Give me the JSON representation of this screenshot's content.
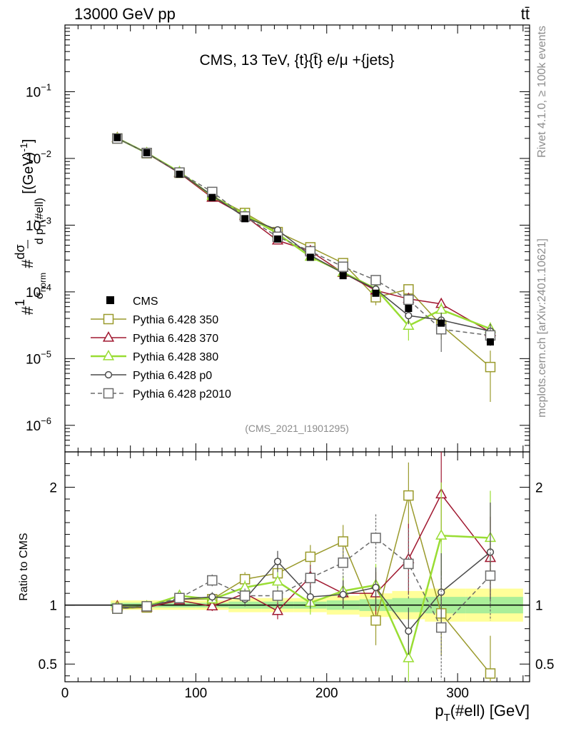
{
  "header": {
    "left": "13000 GeV pp",
    "right": "tt̄"
  },
  "side_labels": {
    "top": "Rivet 4.1.0, ≥ 100k events",
    "bottom": "mcplots.cern.ch [arXiv:2401.10621]"
  },
  "chart_data": {
    "type": "line",
    "title": "CMS, 13 TeV, {t}{t̄} e/μ +{jets}",
    "analysis_label": "(CMS_2021_I1901295)",
    "xlabel": "p_T(#ell) [GeV]",
    "ylabel": "#1/σ_norm # dσ/dp_T(#ell) [(GeV)^-1]",
    "ratio_ylabel": "Ratio to CMS",
    "xlim": [
      0,
      355
    ],
    "ylim": [
      4e-07,
      1
    ],
    "yscale": "log",
    "ratio_ylim": [
      0.35,
      2.3
    ],
    "x_ticks": [
      0,
      100,
      200,
      300
    ],
    "y_ticks": [
      {
        "value": 1e-06,
        "mant": "10",
        "exp": "−6"
      },
      {
        "value": 1e-05,
        "mant": "10",
        "exp": "−5"
      },
      {
        "value": 0.0001,
        "mant": "10",
        "exp": "−4"
      },
      {
        "value": 0.001,
        "mant": "10",
        "exp": "−3"
      },
      {
        "value": 0.01,
        "mant": "10",
        "exp": "−2"
      },
      {
        "value": 0.1,
        "mant": "10",
        "exp": "−1"
      }
    ],
    "ratio_ticks": [
      0.5,
      1,
      2
    ],
    "x": [
      40,
      62.5,
      87.5,
      112.5,
      137.5,
      162.5,
      187.5,
      212.5,
      237.5,
      262.5,
      287.5,
      325
    ],
    "cms": {
      "name": "CMS",
      "values": [
        0.0205,
        0.0122,
        0.0058,
        0.0026,
        0.00125,
        0.00062,
        0.00033,
        0.000175,
        9.55e-05,
        5.65e-05,
        3.4e-05,
        1.78e-05
      ],
      "rel_err": [
        0.02,
        0.02,
        0.02,
        0.02,
        0.03,
        0.03,
        0.03,
        0.04,
        0.05,
        0.06,
        0.07,
        0.07
      ]
    },
    "series": [
      {
        "name": "Pythia 6.428 350",
        "color": "#9a9a2c",
        "marker": "square",
        "dash": false,
        "ratio": [
          0.97,
          0.98,
          1.05,
          1.05,
          1.22,
          1.27,
          1.41,
          1.54,
          0.87,
          1.93,
          0.93,
          0.42
        ],
        "ratio_err": [
          0.02,
          0.02,
          0.03,
          0.05,
          0.06,
          0.08,
          0.1,
          0.14,
          0.21,
          0.28,
          0.36,
          0.32
        ]
      },
      {
        "name": "Pythia 6.428 370",
        "color": "#a01830",
        "marker": "triangle",
        "dash": false,
        "ratio": [
          0.99,
          0.98,
          1.04,
          0.99,
          1.1,
          0.95,
          1.24,
          1.1,
          1.1,
          1.39,
          1.94,
          1.4
        ],
        "ratio_err": [
          0.02,
          0.02,
          0.03,
          0.04,
          0.06,
          0.07,
          0.1,
          0.12,
          0.18,
          0.3,
          0.4,
          0.35
        ]
      },
      {
        "name": "Pythia 6.428 380",
        "color": "#99dd33",
        "marker": "triangle",
        "dash": false,
        "ratio": [
          0.98,
          0.99,
          1.08,
          1.05,
          1.15,
          1.2,
          1.02,
          1.12,
          1.17,
          0.55,
          1.59,
          1.57
        ],
        "ratio_err": [
          0.02,
          0.02,
          0.03,
          0.04,
          0.06,
          0.08,
          0.1,
          0.13,
          0.18,
          0.22,
          0.45,
          0.4
        ]
      },
      {
        "name": "Pythia 6.428 p0",
        "color": "#4a4a4a",
        "marker": "circle",
        "dash": false,
        "ratio": [
          0.98,
          0.99,
          1.05,
          1.07,
          1.05,
          1.37,
          1.07,
          1.09,
          1.15,
          0.78,
          1.11,
          1.45
        ],
        "ratio_err": [
          0.02,
          0.02,
          0.03,
          0.04,
          0.06,
          0.09,
          0.1,
          0.12,
          0.17,
          0.2,
          0.33,
          0.42
        ]
      },
      {
        "name": "Pythia 6.428 p2010",
        "color": "#6a6a6a",
        "marker": "square",
        "dash": true,
        "ratio": [
          0.97,
          0.99,
          1.06,
          1.21,
          1.08,
          1.08,
          1.23,
          1.36,
          1.57,
          1.35,
          0.81,
          1.25
        ],
        "ratio_err": [
          0.02,
          0.02,
          0.03,
          0.05,
          0.06,
          0.08,
          0.1,
          0.13,
          0.2,
          0.3,
          0.44,
          0.38
        ]
      }
    ]
  }
}
